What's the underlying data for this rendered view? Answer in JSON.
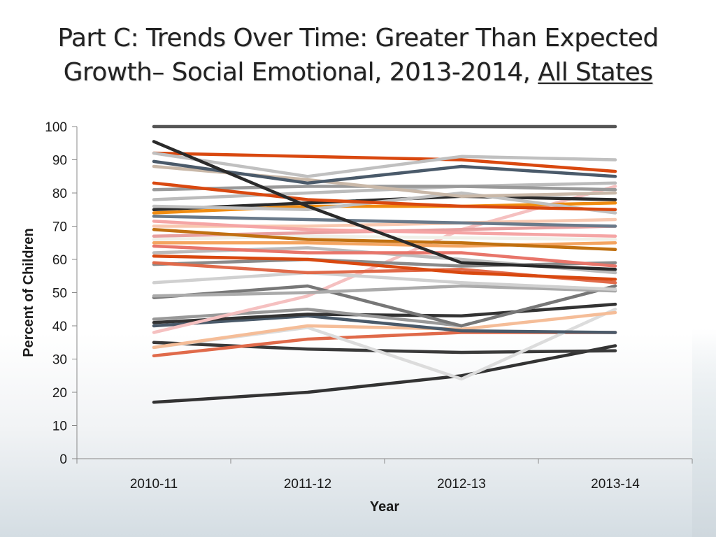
{
  "title": {
    "prefix": "Part C: Trends Over Time: Greater Than Expected Growth– Social Emotional, 2013-2014, ",
    "emphasis": "All States"
  },
  "chart_data": {
    "type": "line",
    "categories": [
      "2010-11",
      "2011-12",
      "2012-13",
      "2013-14"
    ],
    "xlabel": "Year",
    "ylabel": "Percent of Children",
    "ylim": [
      0,
      100
    ],
    "yticks": [
      0,
      10,
      20,
      30,
      40,
      50,
      60,
      70,
      80,
      90,
      100
    ],
    "grid": false,
    "legend": "none",
    "series": [
      {
        "values": [
          100,
          100,
          100,
          100
        ],
        "color": "#555555"
      },
      {
        "values": [
          17,
          20,
          25,
          34
        ],
        "color": "#333333"
      },
      {
        "values": [
          35,
          33,
          32,
          32.5
        ],
        "color": "#3a3a3a"
      },
      {
        "values": [
          31,
          36,
          38,
          38
        ],
        "color": "#e06a4a"
      },
      {
        "values": [
          33.5,
          39.5,
          24,
          45
        ],
        "color": "#dcdcdc"
      },
      {
        "values": [
          33.5,
          40,
          39,
          44
        ],
        "color": "#f5bd98"
      },
      {
        "values": [
          40,
          43,
          38.5,
          38
        ],
        "color": "#4a5a6a"
      },
      {
        "values": [
          41,
          43.5,
          43,
          46.5
        ],
        "color": "#333333"
      },
      {
        "values": [
          42,
          45,
          40,
          52
        ],
        "color": "#999999"
      },
      {
        "values": [
          38,
          49,
          69,
          82
        ],
        "color": "#f5c0c0"
      },
      {
        "values": [
          48.5,
          52,
          40,
          52
        ],
        "color": "#777777"
      },
      {
        "values": [
          49,
          50,
          52,
          50.5
        ],
        "color": "#aaaaaa"
      },
      {
        "values": [
          53,
          56,
          53,
          51
        ],
        "color": "#d0d0d0"
      },
      {
        "values": [
          58.5,
          60,
          58,
          59
        ],
        "color": "#8a8a8a"
      },
      {
        "values": [
          59,
          56,
          57,
          53
        ],
        "color": "#e06a4a"
      },
      {
        "values": [
          61,
          60,
          56,
          54
        ],
        "color": "#d9480f"
      },
      {
        "values": [
          62,
          63.5,
          60,
          56
        ],
        "color": "#bbbbbb"
      },
      {
        "values": [
          64,
          62,
          62,
          58
        ],
        "color": "#e8756a"
      },
      {
        "values": [
          65,
          65,
          64,
          65
        ],
        "color": "#f4a460"
      },
      {
        "values": [
          66,
          67,
          66.5,
          66
        ],
        "color": "#f0f0e8"
      },
      {
        "values": [
          67,
          68,
          69,
          70
        ],
        "color": "#e8a0a0"
      },
      {
        "values": [
          69,
          66,
          65,
          63
        ],
        "color": "#c07010"
      },
      {
        "values": [
          70,
          70,
          71,
          72
        ],
        "color": "#f8c8b0"
      },
      {
        "values": [
          71.5,
          69,
          68,
          67
        ],
        "color": "#f5a5a5"
      },
      {
        "values": [
          73,
          72,
          71,
          70
        ],
        "color": "#6a7a8a"
      },
      {
        "values": [
          74,
          76,
          76,
          77
        ],
        "color": "#f08c10"
      },
      {
        "values": [
          75,
          77,
          79,
          78
        ],
        "color": "#2a2a2a"
      },
      {
        "values": [
          76,
          75,
          80,
          74
        ],
        "color": "#c0c0c0"
      },
      {
        "values": [
          78,
          80,
          82,
          83
        ],
        "color": "#bbbbbb"
      },
      {
        "values": [
          81,
          82,
          82,
          81
        ],
        "color": "#999999"
      },
      {
        "values": [
          83,
          78,
          76,
          75
        ],
        "color": "#d9480f"
      },
      {
        "values": [
          88,
          84,
          79,
          80
        ],
        "color": "#c9b8a8"
      },
      {
        "values": [
          89.5,
          83,
          88,
          85
        ],
        "color": "#4a5a6a"
      },
      {
        "values": [
          92,
          91,
          90,
          86.5
        ],
        "color": "#d9480f"
      },
      {
        "values": [
          92,
          85,
          91,
          90
        ],
        "color": "#c0c0c0"
      },
      {
        "values": [
          95.5,
          76,
          59,
          57
        ],
        "color": "#2a2a2a"
      }
    ]
  }
}
